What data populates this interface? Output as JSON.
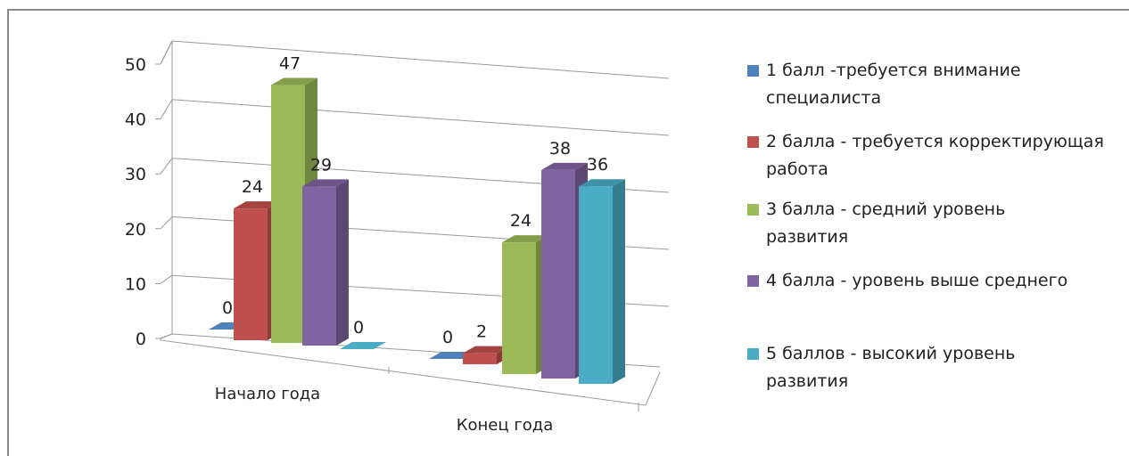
{
  "chart_data": {
    "type": "bar",
    "categories": [
      "Начало года",
      "Конец года"
    ],
    "series": [
      {
        "name": "1 балл -требуется внимание специалиста",
        "values": [
          0,
          0
        ],
        "color": "#4f81bd"
      },
      {
        "name": "2 балла - требуется корректирующая работа",
        "values": [
          24,
          2
        ],
        "color": "#c0504d"
      },
      {
        "name": "3 балла - средний уровень развития",
        "values": [
          47,
          24
        ],
        "color": "#9bbb59"
      },
      {
        "name": "4 балла - уровень выше среднего",
        "values": [
          29,
          38
        ],
        "color": "#8064a2"
      },
      {
        "name": "5 баллов - высокий уровень развития",
        "values": [
          0,
          36
        ],
        "color": "#4bacc6"
      }
    ],
    "yticks": [
      "0",
      "10",
      "20",
      "30",
      "40",
      "50"
    ],
    "ylim": [
      0,
      50
    ],
    "grid": true,
    "legend_position": "right",
    "view": "3d-clustered-column"
  }
}
